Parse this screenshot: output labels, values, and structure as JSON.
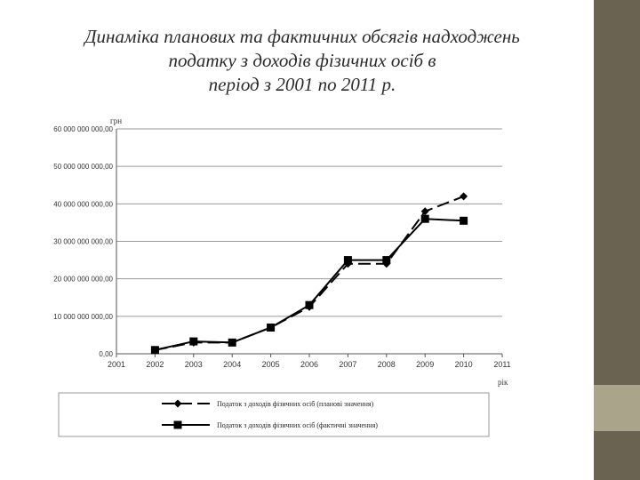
{
  "slide": {
    "title_lines": [
      "Динаміка планових та фактичних обсягів надходжень",
      "податку з доходів фізичних осіб в",
      "період з 2001 по 2011 р."
    ]
  },
  "chart_data": {
    "type": "line",
    "ylabel": "грн",
    "xlabel": "рік",
    "x": [
      2001,
      2002,
      2003,
      2004,
      2005,
      2006,
      2007,
      2008,
      2009,
      2010,
      2011
    ],
    "x_tick_labels": [
      "2001",
      "2002",
      "2003",
      "2004",
      "2005",
      "2006",
      "2007",
      "2008",
      "2009",
      "2010",
      "2011"
    ],
    "xlim": [
      2001,
      2011
    ],
    "ylim": [
      0,
      60000000000
    ],
    "y_ticks": [
      0,
      10000000000,
      20000000000,
      30000000000,
      40000000000,
      50000000000,
      60000000000
    ],
    "y_tick_labels": [
      "0,00",
      "10 000 000 000,00",
      "20 000 000 000,00",
      "30 000 000 000,00",
      "40 000 000 000,00",
      "50 000 000 000,00",
      "60 000 000 000,00"
    ],
    "grid": "horizontal",
    "legend_position": "bottom",
    "series": [
      {
        "name": "Податок з доходів фізичних осіб (планові значення)",
        "marker": "diamond",
        "line_style": "dashed",
        "x": [
          2002,
          2003,
          2004,
          2005,
          2006,
          2007,
          2008,
          2009,
          2010
        ],
        "values": [
          1000000000,
          3000000000,
          3000000000,
          7000000000,
          12500000000,
          24000000000,
          24000000000,
          38000000000,
          42000000000
        ]
      },
      {
        "name": "Податок з доходів фізичних осіб (фактичні значення)",
        "marker": "square",
        "line_style": "solid",
        "x": [
          2002,
          2003,
          2004,
          2005,
          2006,
          2007,
          2008,
          2009,
          2010
        ],
        "values": [
          1000000000,
          3300000000,
          3000000000,
          7000000000,
          13000000000,
          25000000000,
          25000000000,
          36000000000,
          35500000000
        ]
      }
    ]
  },
  "colors": {
    "side_bar": "#6b6352",
    "side_bar_accent": "#a9a48a",
    "series_color": "#000000"
  }
}
